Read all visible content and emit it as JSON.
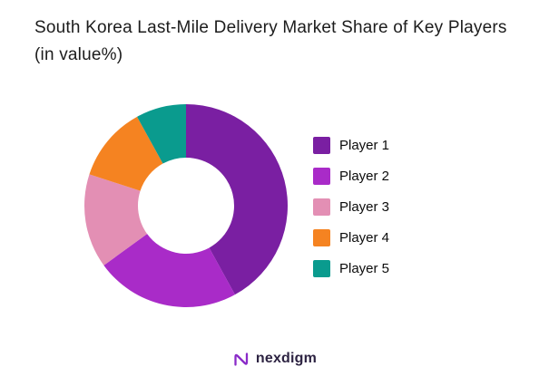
{
  "title": "South Korea Last-Mile Delivery Market Share of Key Players (in value%)",
  "chart_data": {
    "type": "pie",
    "subtype": "donut",
    "title": "South Korea Last-Mile Delivery Market Share of Key Players (in value%)",
    "categories": [
      "Player 1",
      "Player 2",
      "Player 3",
      "Player 4",
      "Player 5"
    ],
    "values": [
      42,
      23,
      15,
      12,
      8
    ],
    "unit": "value %",
    "colors": [
      "#7A1FA2",
      "#A92BC8",
      "#E38FB4",
      "#F58321",
      "#0A9B8E"
    ],
    "legend_position": "right",
    "donut_hole_ratio": 0.47,
    "start_angle_deg": 0,
    "direction": "clockwise"
  },
  "footer": {
    "brand": "nexdigm",
    "brand_color": "#8A2BC8"
  }
}
